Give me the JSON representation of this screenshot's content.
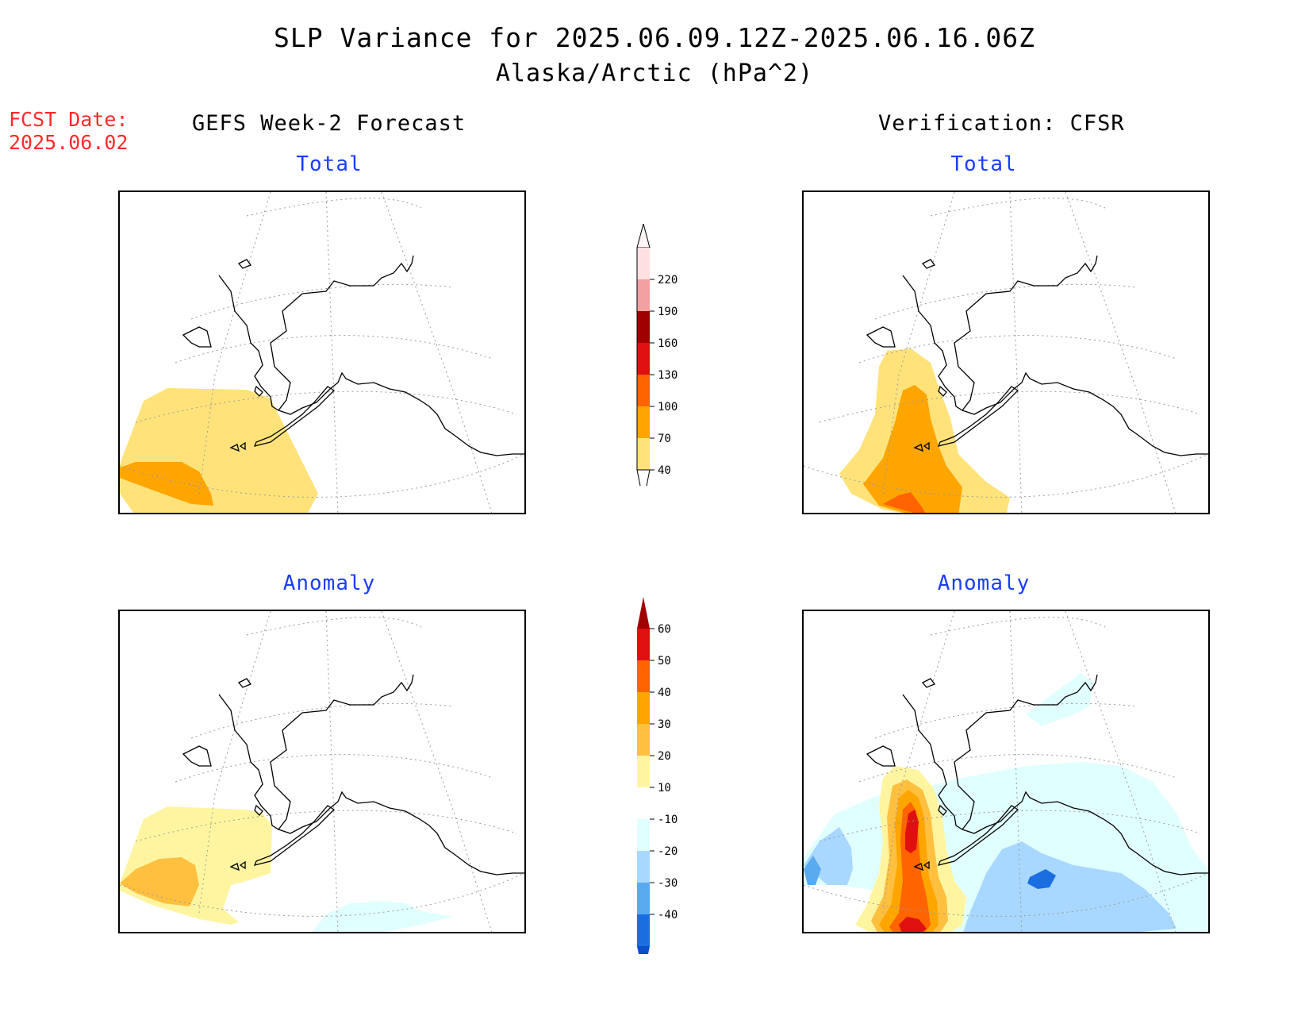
{
  "title": {
    "line1": "SLP Variance for 2025.06.09.12Z-2025.06.16.06Z",
    "line2": "Alaska/Arctic (hPa^2)"
  },
  "fcst_date": {
    "label": "FCST Date:",
    "value": "2025.06.02"
  },
  "columns": {
    "left": "GEFS Week-2 Forecast",
    "right": "Verification: CFSR"
  },
  "panels": {
    "forecast_total": "Total",
    "forecast_anomaly": "Anomaly",
    "verification_total": "Total",
    "verification_anomaly": "Anomaly"
  },
  "colorbars": {
    "total": {
      "levels": [
        "220",
        "190",
        "160",
        "130",
        "100",
        "70",
        "40"
      ],
      "colors": [
        "#ffe0e0",
        "#f2a0a0",
        "#a00000",
        "#e01010",
        "#ff6400",
        "#ffa500",
        "#ffe37a"
      ]
    },
    "anomaly": {
      "levels": [
        "60",
        "50",
        "40",
        "30",
        "20",
        "10",
        "-10",
        "-20",
        "-30",
        "-40"
      ],
      "colors": [
        "#a00000",
        "#e01010",
        "#ff6400",
        "#ffa500",
        "#ffc040",
        "#fff5a0",
        "#ffffff",
        "#e0ffff",
        "#a8d8ff",
        "#5aaaf0",
        "#1a6ee0",
        "#0a50c8"
      ]
    }
  },
  "legend_colors": {
    "yellow": "#ffe37a",
    "orange": "#ffa500",
    "dark_orange": "#ff6400",
    "red": "#e01010",
    "dark_red": "#a00000",
    "pale_yellow": "#fff5a0",
    "light_orange": "#ffc040",
    "light_cyan": "#e0ffff",
    "light_blue": "#a8d8ff",
    "mid_blue": "#5aaaf0",
    "blue": "#1a6ee0"
  }
}
